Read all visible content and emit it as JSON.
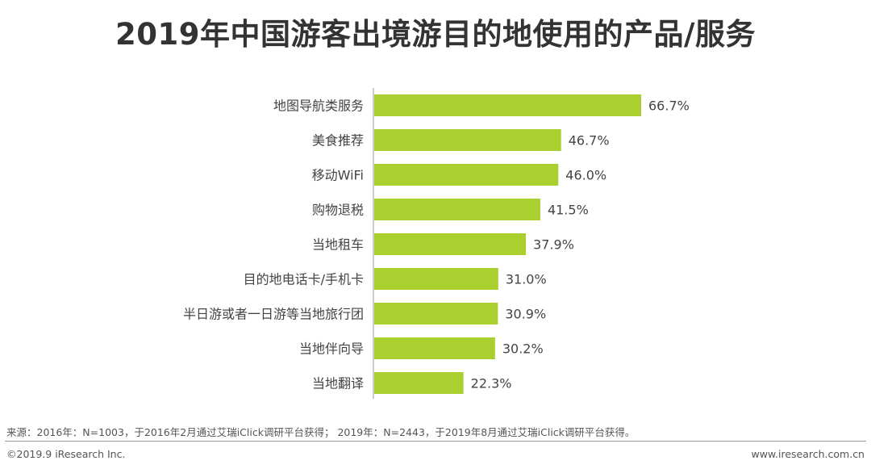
{
  "chart_data": {
    "type": "bar",
    "orientation": "horizontal",
    "title": "2019年中国游客出境游目的地使用的产品/服务",
    "categories": [
      "地图导航类服务",
      "美食推荐",
      "移动WiFi",
      "购物退税",
      "当地租车",
      "目的地电话卡/手机卡",
      "半日游或者一日游等当地旅行团",
      "当地伴向导",
      "当地翻译"
    ],
    "values": [
      66.7,
      46.7,
      46.0,
      41.5,
      37.9,
      31.0,
      30.9,
      30.2,
      22.3
    ],
    "value_labels": [
      "66.7%",
      "46.7%",
      "46.0%",
      "41.5%",
      "37.9%",
      "31.0%",
      "30.9%",
      "30.2%",
      "22.3%"
    ],
    "unit": "%",
    "xlim": [
      0,
      100
    ],
    "grid": false,
    "legend": "none",
    "bar_color": "#a9d02e",
    "axis_color": "#9a9a9a"
  },
  "footer": {
    "source": "来源：2016年：N=1003，于2016年2月通过艾瑞iClick调研平台获得； 2019年：N=2443，于2019年8月通过艾瑞iClick调研平台获得。",
    "copyright": "©2019.9 iResearch Inc.",
    "website": "www.iresearch.com.cn"
  }
}
